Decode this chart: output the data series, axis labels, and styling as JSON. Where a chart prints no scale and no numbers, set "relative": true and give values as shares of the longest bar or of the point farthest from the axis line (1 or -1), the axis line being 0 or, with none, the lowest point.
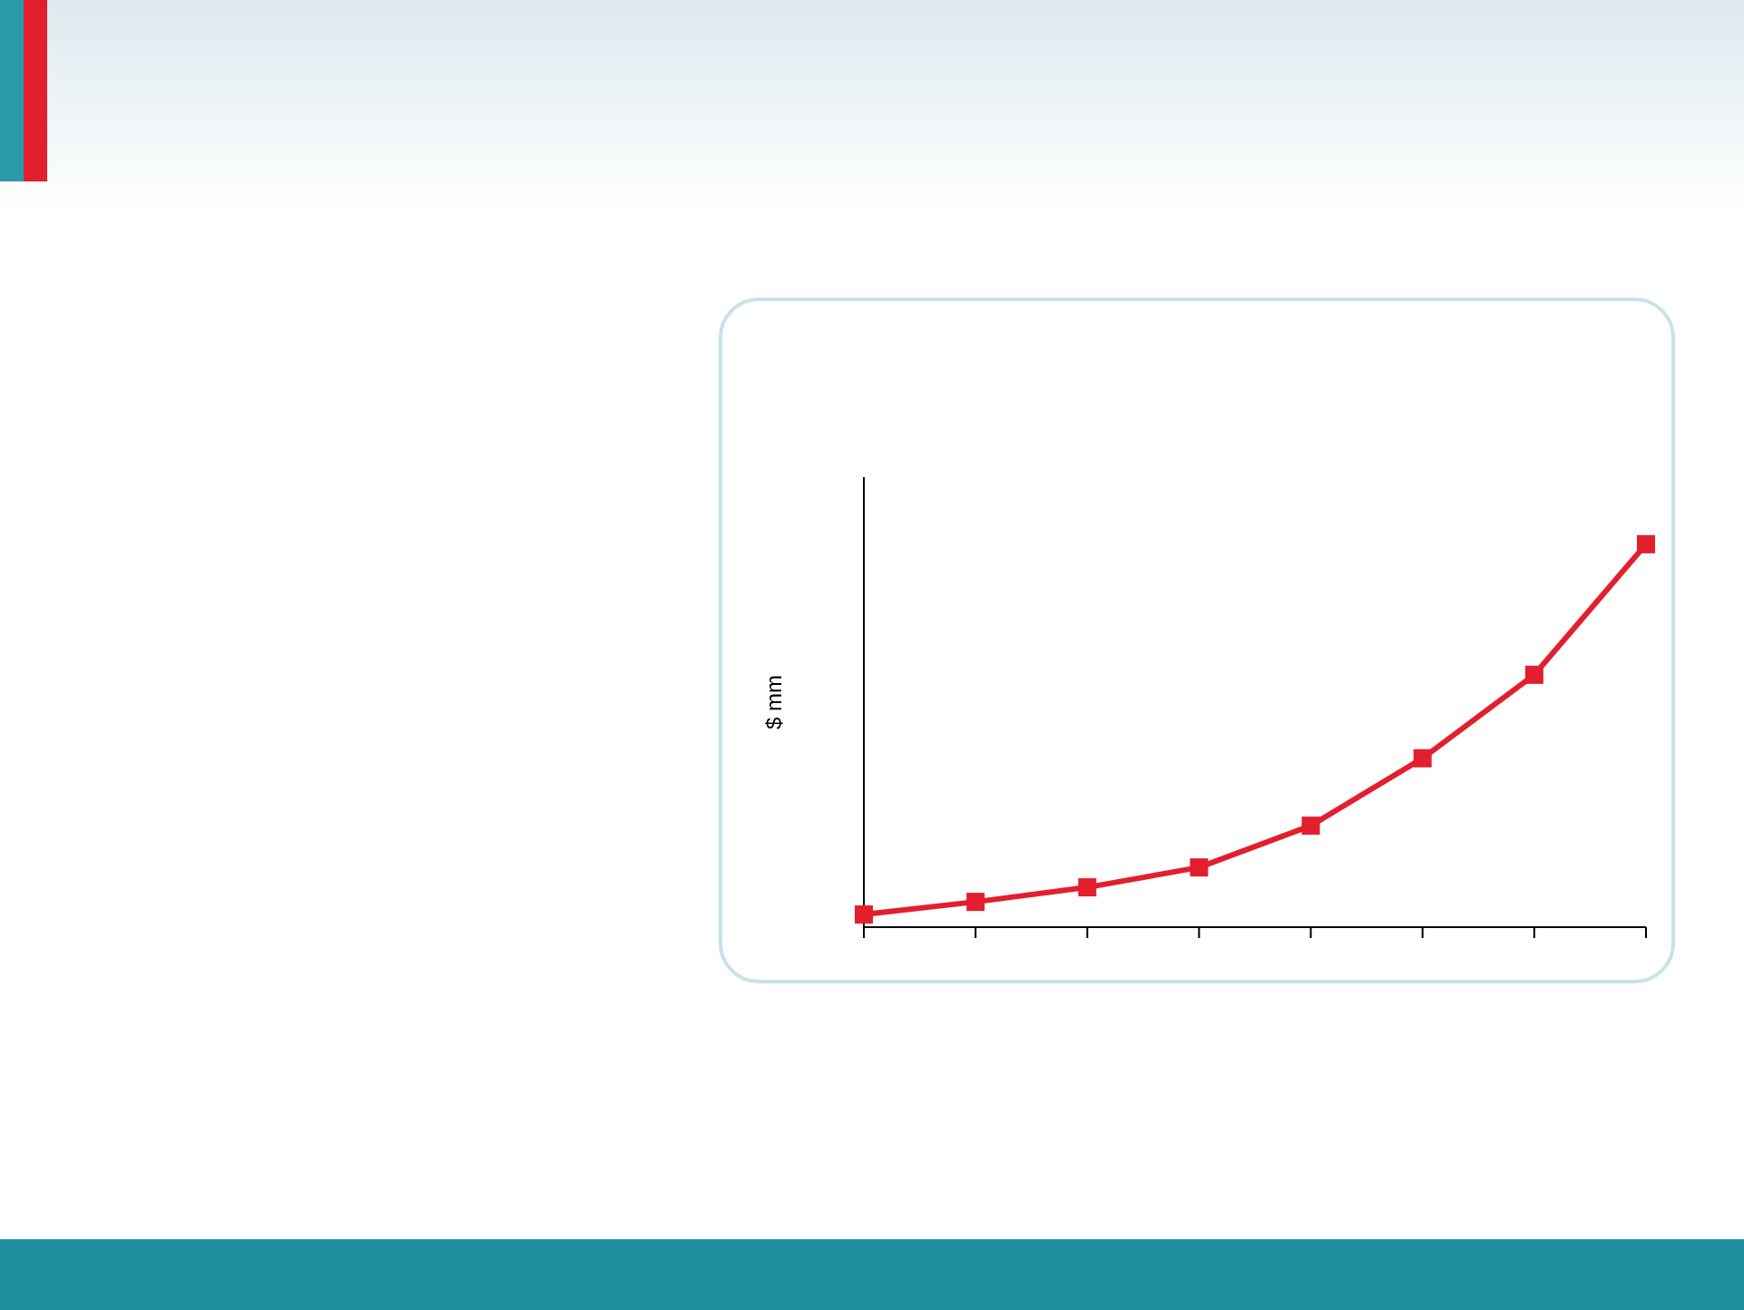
{
  "chart_data": {
    "type": "line",
    "ylabel": "$ mm",
    "categories": [
      null,
      null,
      null,
      null,
      null,
      null,
      null,
      null
    ],
    "relative": true,
    "series": [
      {
        "color": "#e31e2d",
        "values": [
          0.033,
          0.066,
          0.104,
          0.156,
          0.265,
          0.441,
          0.659,
          1
        ]
      }
    ],
    "marker": "square",
    "line_style": "solid",
    "grid": false,
    "legend": false
  }
}
